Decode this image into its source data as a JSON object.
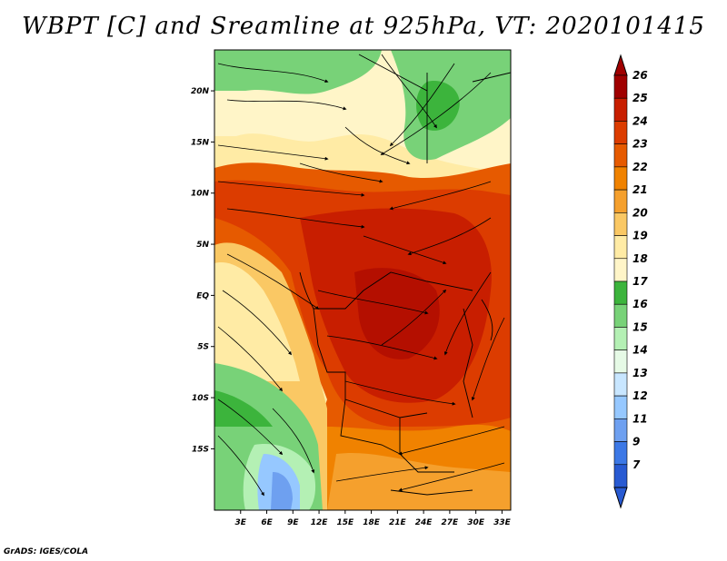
{
  "title": "WBPT [C] and Sreamline at 925hPa, VT: 2020101415",
  "footer": "GrADS: IGES/COLA",
  "map": {
    "lat_labels": [
      "20N",
      "15N",
      "10N",
      "5N",
      "EQ",
      "5S",
      "10S",
      "15S"
    ],
    "lon_labels": [
      "3E",
      "6E",
      "9E",
      "12E",
      "15E",
      "18E",
      "21E",
      "24E",
      "27E",
      "30E",
      "33E"
    ],
    "lat_range": [
      -21,
      24
    ],
    "lon_range": [
      0,
      34
    ]
  },
  "colorbar": {
    "levels": [
      "26",
      "25",
      "24",
      "23",
      "22",
      "21",
      "20",
      "19",
      "18",
      "17",
      "16",
      "15",
      "14",
      "13",
      "12",
      "11",
      "9",
      "7"
    ],
    "colors": [
      "#a00000",
      "#c81e00",
      "#dc3c00",
      "#e65a00",
      "#f08200",
      "#f5a02d",
      "#fac864",
      "#ffeba5",
      "#fff5c8",
      "#3cb43c",
      "#78d278",
      "#b4f0b4",
      "#e6fae6",
      "#c8e6ff",
      "#96c8ff",
      "#6ea0f0",
      "#3c78e6",
      "#285ad2"
    ]
  }
}
